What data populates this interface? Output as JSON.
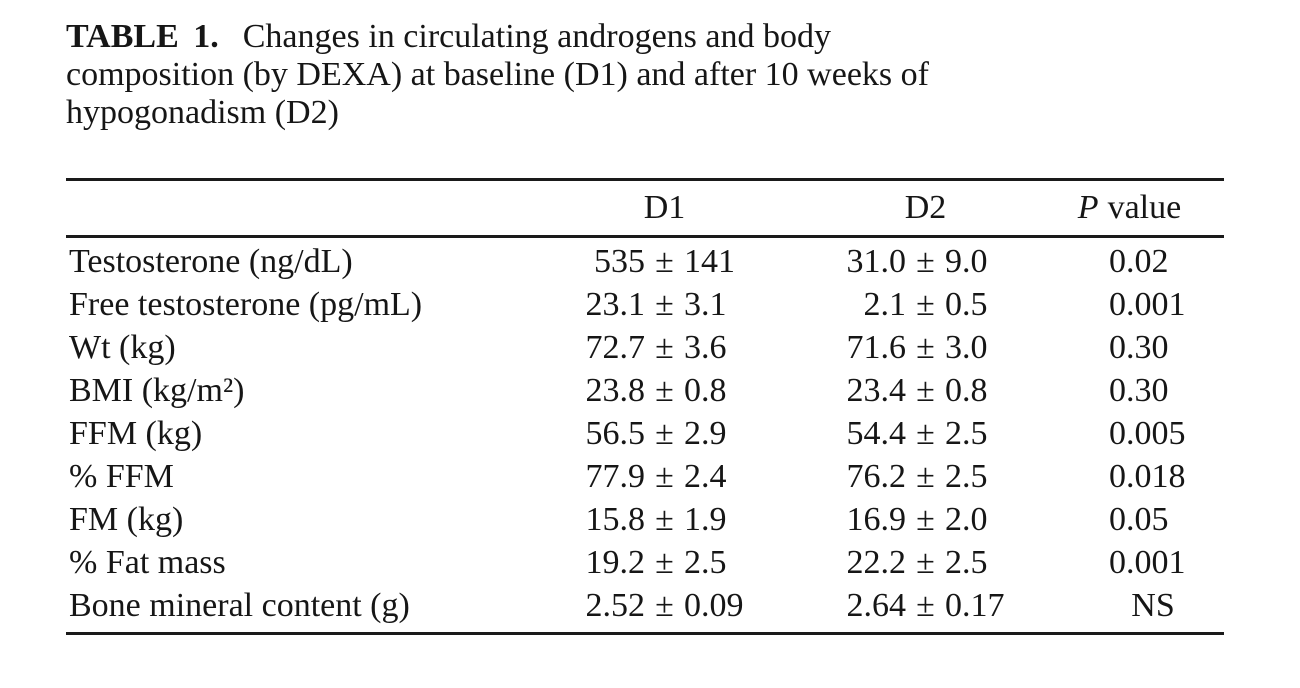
{
  "caption": {
    "label": "TABLE 1.",
    "lines": [
      "Changes in circulating androgens and body",
      "composition (by DEXA) at baseline (D1) and after 10 weeks of",
      "hypogonadism (D2)"
    ]
  },
  "table": {
    "pm": "±",
    "header": {
      "d1": "D1",
      "d2": "D2",
      "p_italic": "P",
      "p_rest": "value"
    },
    "rows": [
      {
        "label": "Testosterone (ng/dL)",
        "d1m": "535",
        "d1s": "141",
        "d2m": "31.0",
        "d2s": "9.0",
        "p": "0.02"
      },
      {
        "label": "Free testosterone (pg/mL)",
        "d1m": "23.1",
        "d1s": "3.1",
        "d2m": "2.1",
        "d2s": "0.5",
        "p": "0.001"
      },
      {
        "label": "Wt (kg)",
        "d1m": "72.7",
        "d1s": "3.6",
        "d2m": "71.6",
        "d2s": "3.0",
        "p": "0.30"
      },
      {
        "label": "BMI (kg/m²)",
        "d1m": "23.8",
        "d1s": "0.8",
        "d2m": "23.4",
        "d2s": "0.8",
        "p": "0.30"
      },
      {
        "label": "FFM (kg)",
        "d1m": "56.5",
        "d1s": "2.9",
        "d2m": "54.4",
        "d2s": "2.5",
        "p": "0.005"
      },
      {
        "label": "% FFM",
        "d1m": "77.9",
        "d1s": "2.4",
        "d2m": "76.2",
        "d2s": "2.5",
        "p": "0.018"
      },
      {
        "label": "FM (kg)",
        "d1m": "15.8",
        "d1s": "1.9",
        "d2m": "16.9",
        "d2s": "2.0",
        "p": "0.05"
      },
      {
        "label": "% Fat mass",
        "d1m": "19.2",
        "d1s": "2.5",
        "d2m": "22.2",
        "d2s": "2.5",
        "p": "0.001"
      },
      {
        "label": "Bone mineral content (g)",
        "d1m": "2.52",
        "d1s": "0.09",
        "d2m": "2.64",
        "d2s": "0.17",
        "p": "NS"
      }
    ]
  }
}
